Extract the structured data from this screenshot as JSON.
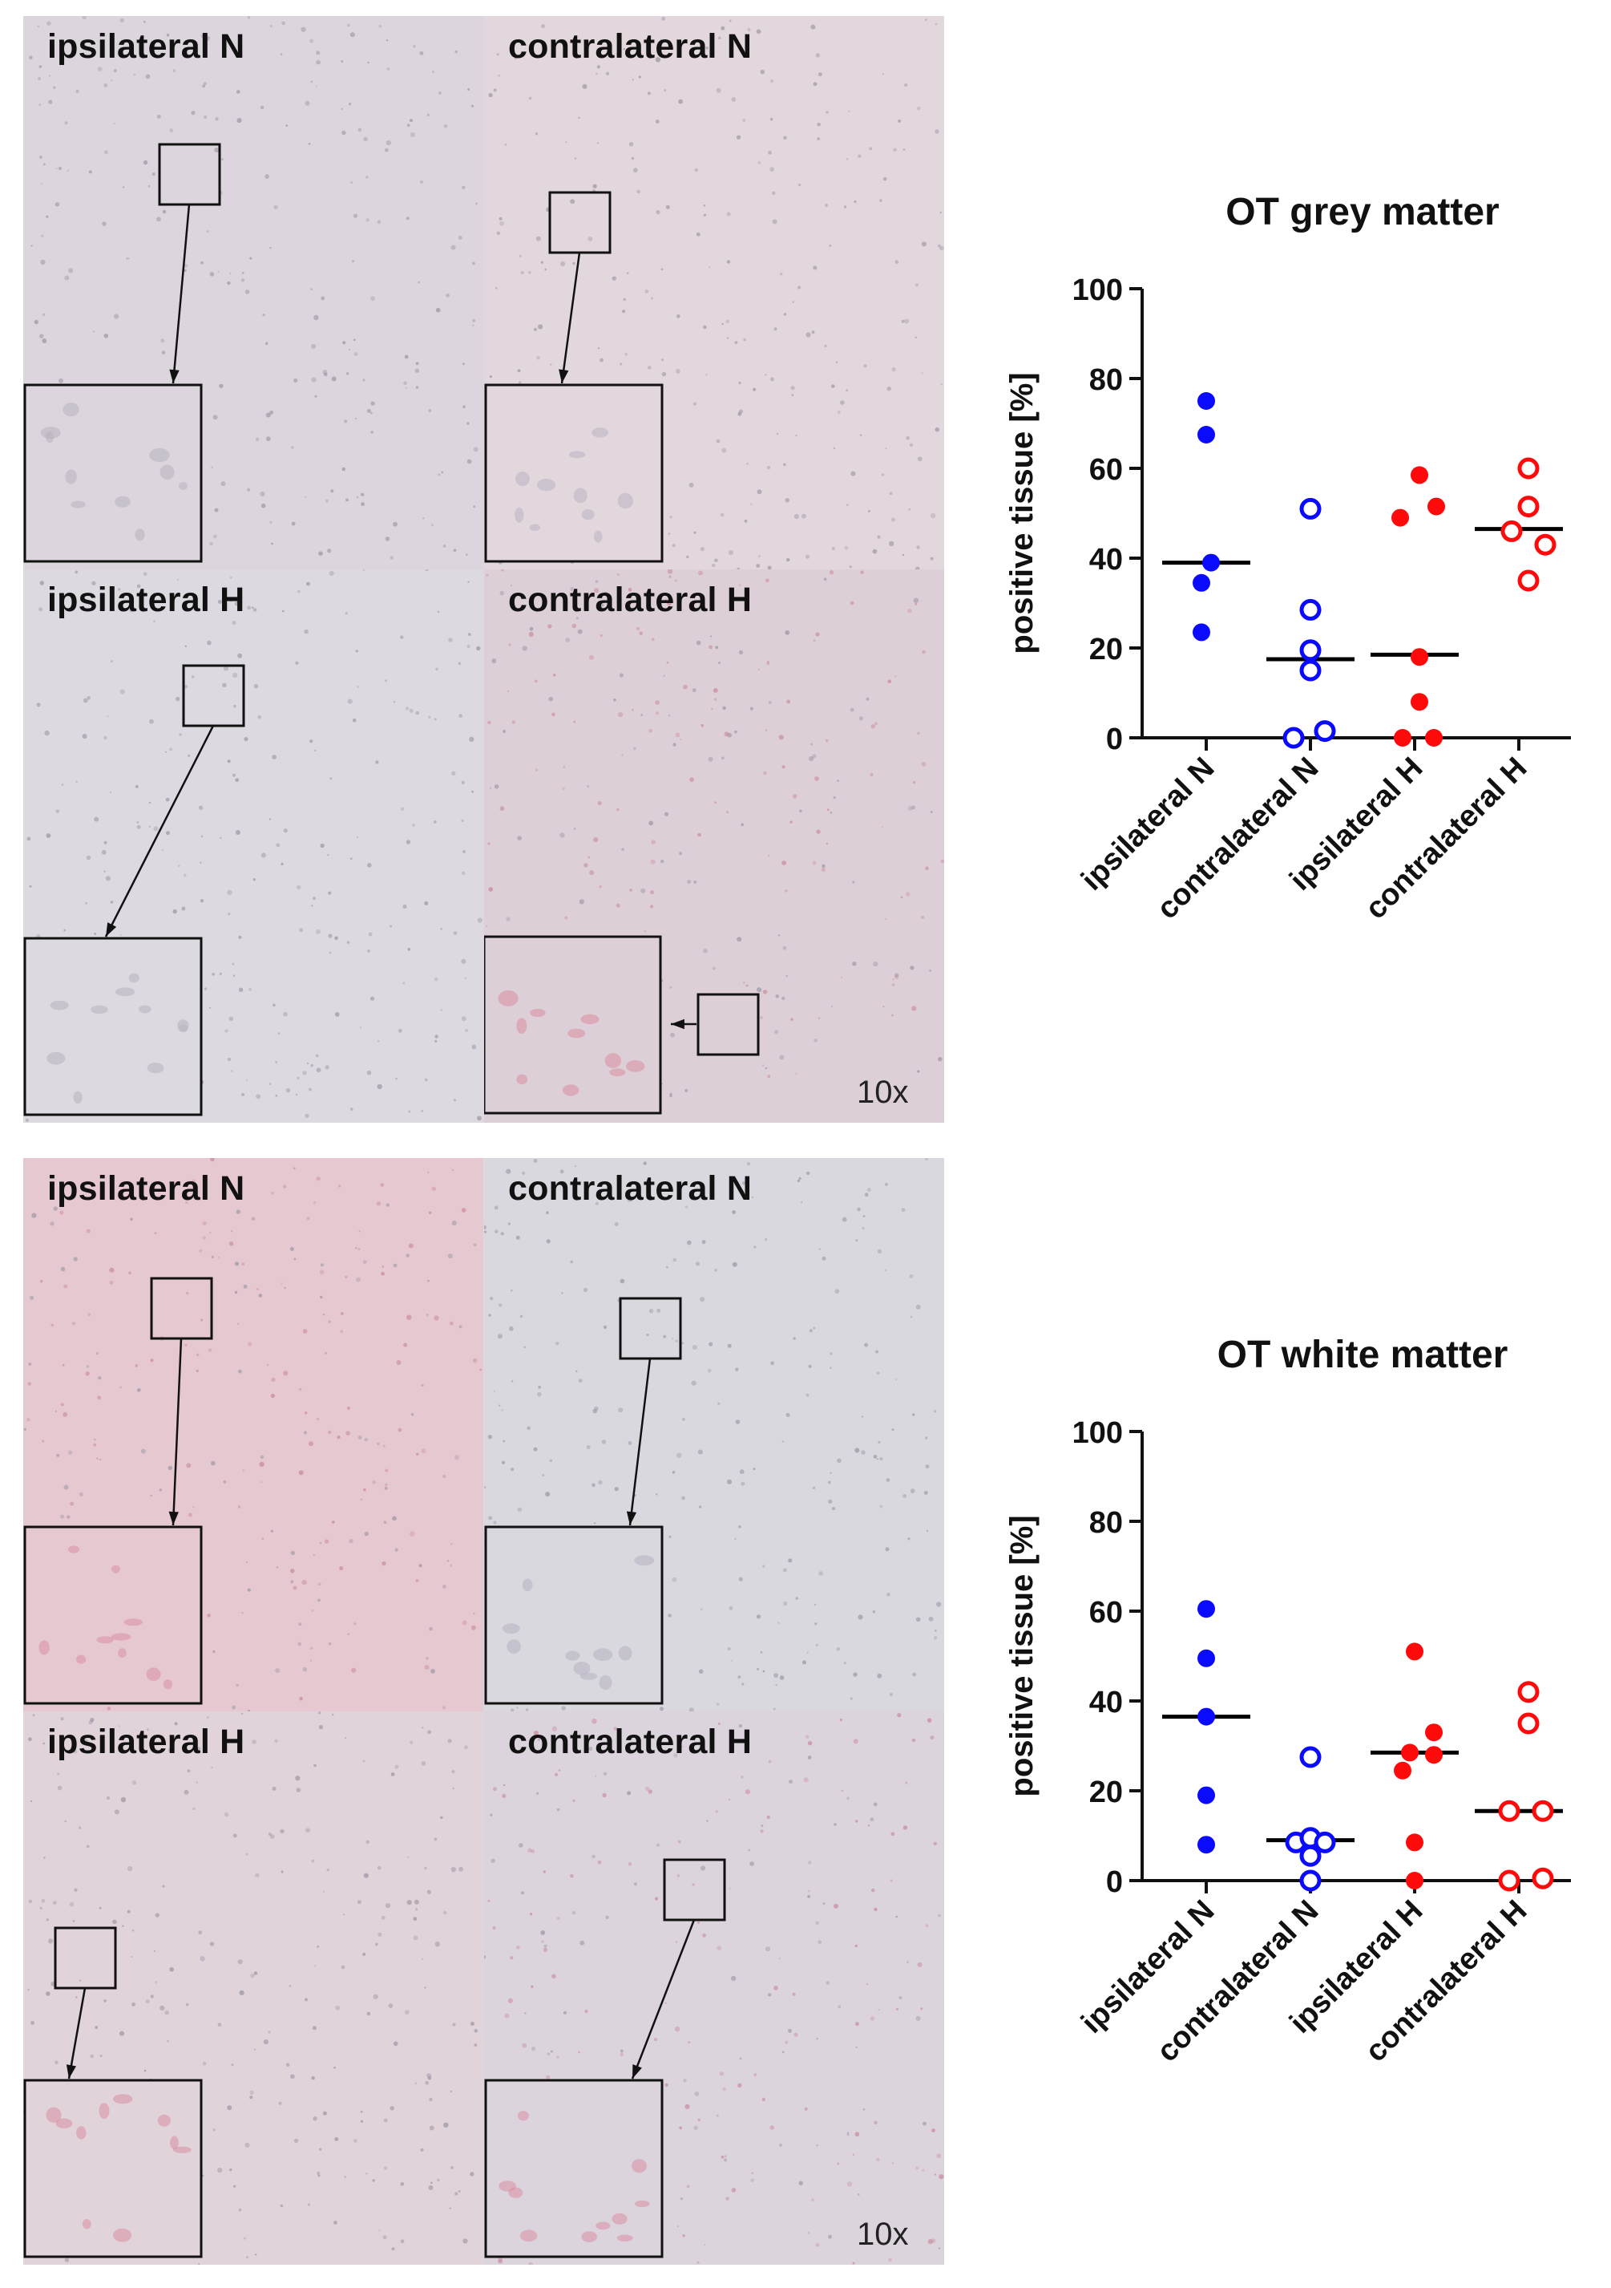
{
  "micrographs": [
    {
      "id": "grey",
      "quadrants": [
        {
          "label": "ipsilateral N",
          "tint": "#dcd5dd"
        },
        {
          "label": "contralateral N",
          "tint": "#e3d7de"
        },
        {
          "label": "ipsilateral H",
          "tint": "#dcd9e0"
        },
        {
          "label": "contralateral H",
          "tint": "#ddcfd7"
        }
      ],
      "magnification": "10x"
    },
    {
      "id": "white",
      "quadrants": [
        {
          "label": "ipsilateral N",
          "tint": "#e6c9d0"
        },
        {
          "label": "contralateral N",
          "tint": "#d9d8df"
        },
        {
          "label": "ipsilateral H",
          "tint": "#e0d3da"
        },
        {
          "label": "contralateral H",
          "tint": "#dcd4dc"
        }
      ],
      "magnification": "10x"
    }
  ],
  "colors": {
    "normoxia": "#0a0aff",
    "hypoxia": "#ff0a0a",
    "median": "#000000"
  },
  "chart_data": [
    {
      "type": "scatter",
      "title": "OT grey matter",
      "ylabel": "positive tissue [%]",
      "ylim": [
        0,
        100
      ],
      "yticks": [
        0,
        20,
        40,
        60,
        80,
        100
      ],
      "categories": [
        "ipsilateral N",
        "contralateral N",
        "ipsilateral H",
        "contralateral H"
      ],
      "groups": [
        {
          "category": "ipsilateral N",
          "color": "#0a0aff",
          "filled": true,
          "median": 39,
          "points": [
            {
              "dx": 0,
              "y": 75
            },
            {
              "dx": 0,
              "y": 67.5
            },
            {
              "dx": 0.1,
              "y": 39
            },
            {
              "dx": -0.1,
              "y": 34.5
            },
            {
              "dx": -0.1,
              "y": 23.5
            }
          ]
        },
        {
          "category": "contralateral N",
          "color": "#0a0aff",
          "filled": false,
          "median": 17.5,
          "points": [
            {
              "dx": 0,
              "y": 51
            },
            {
              "dx": 0,
              "y": 28.5
            },
            {
              "dx": 0,
              "y": 19.5
            },
            {
              "dx": 0,
              "y": 15
            },
            {
              "dx": -0.35,
              "y": 0
            },
            {
              "dx": 0.3,
              "y": 1.5
            }
          ]
        },
        {
          "category": "ipsilateral H",
          "color": "#ff0a0a",
          "filled": true,
          "median": 18.5,
          "points": [
            {
              "dx": 0.1,
              "y": 58.5
            },
            {
              "dx": -0.3,
              "y": 49
            },
            {
              "dx": 0.45,
              "y": 51.5
            },
            {
              "dx": 0.1,
              "y": 18
            },
            {
              "dx": 0.1,
              "y": 8
            },
            {
              "dx": -0.25,
              "y": 0
            },
            {
              "dx": 0.4,
              "y": 0
            }
          ]
        },
        {
          "category": "contralateral H",
          "color": "#ff0a0a",
          "filled": false,
          "median": 46.5,
          "points": [
            {
              "dx": 0.2,
              "y": 60
            },
            {
              "dx": 0.2,
              "y": 51.5
            },
            {
              "dx": -0.15,
              "y": 46
            },
            {
              "dx": 0.55,
              "y": 43
            },
            {
              "dx": 0.2,
              "y": 35
            }
          ]
        }
      ]
    },
    {
      "type": "scatter",
      "title": "OT white matter",
      "ylabel": "positive tissue [%]",
      "ylim": [
        0,
        100
      ],
      "yticks": [
        0,
        20,
        40,
        60,
        80,
        100
      ],
      "categories": [
        "ipsilateral N",
        "contralateral N",
        "ipsilateral H",
        "contralateral H"
      ],
      "groups": [
        {
          "category": "ipsilateral N",
          "color": "#0a0aff",
          "filled": true,
          "median": 36.5,
          "points": [
            {
              "dx": 0,
              "y": 60.5
            },
            {
              "dx": 0,
              "y": 49.5
            },
            {
              "dx": 0,
              "y": 36.5
            },
            {
              "dx": 0,
              "y": 19
            },
            {
              "dx": 0,
              "y": 8
            }
          ]
        },
        {
          "category": "contralateral N",
          "color": "#0a0aff",
          "filled": false,
          "median": 9,
          "points": [
            {
              "dx": 0,
              "y": 27.5
            },
            {
              "dx": -0.3,
              "y": 8.5
            },
            {
              "dx": 0,
              "y": 9.5
            },
            {
              "dx": 0.3,
              "y": 8.5
            },
            {
              "dx": 0,
              "y": 5.5
            },
            {
              "dx": 0,
              "y": 0
            }
          ]
        },
        {
          "category": "ipsilateral H",
          "color": "#ff0a0a",
          "filled": true,
          "median": 28.5,
          "points": [
            {
              "dx": 0,
              "y": 51
            },
            {
              "dx": 0.4,
              "y": 33
            },
            {
              "dx": -0.1,
              "y": 28.5
            },
            {
              "dx": 0.4,
              "y": 28
            },
            {
              "dx": -0.25,
              "y": 24.5
            },
            {
              "dx": 0,
              "y": 8.5
            },
            {
              "dx": 0,
              "y": 0
            }
          ]
        },
        {
          "category": "contralateral H",
          "color": "#ff0a0a",
          "filled": false,
          "median": 15.5,
          "points": [
            {
              "dx": 0.2,
              "y": 42
            },
            {
              "dx": 0.2,
              "y": 35
            },
            {
              "dx": -0.2,
              "y": 15.5
            },
            {
              "dx": 0.5,
              "y": 15.5
            },
            {
              "dx": -0.2,
              "y": 0
            },
            {
              "dx": 0.5,
              "y": 0.5
            }
          ]
        }
      ]
    }
  ]
}
